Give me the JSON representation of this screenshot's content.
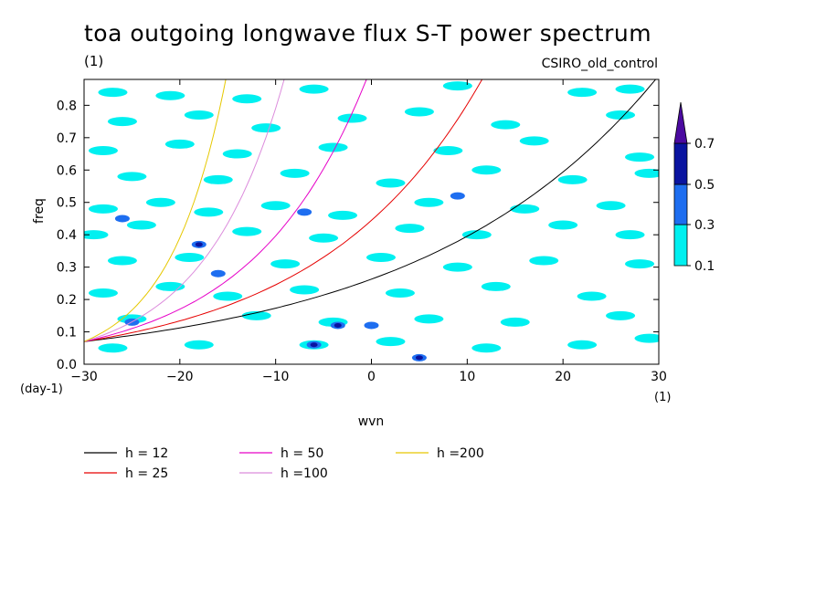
{
  "title": "toa outgoing longwave flux S-T power spectrum",
  "units_label": "(1)",
  "run_label": "CSIRO_old_control",
  "chart_data": {
    "type": "heatmap",
    "title": "toa outgoing longwave flux S-T power spectrum",
    "xlabel": "wvn",
    "ylabel": "freq",
    "x_unit": "(1)",
    "y_unit": "(day-1)",
    "xlim": [
      -30,
      30
    ],
    "ylim": [
      0,
      0.88
    ],
    "x_ticks": [
      -30,
      -20,
      -10,
      0,
      10,
      20,
      30
    ],
    "y_ticks": [
      0.0,
      0.1,
      0.2,
      0.3,
      0.4,
      0.5,
      0.6,
      0.7,
      0.8
    ],
    "colorbar": {
      "levels": [
        0.1,
        0.3,
        0.5,
        0.7
      ],
      "colors": [
        "#00f0f0",
        "#1e6ef0",
        "#0a14a0",
        "#4b0aa0"
      ]
    },
    "series": [
      {
        "name": "h = 12",
        "h": 12,
        "color": "#000000"
      },
      {
        "name": "h = 25",
        "h": 25,
        "color": "#e60000"
      },
      {
        "name": "h = 50",
        "h": 50,
        "color": "#e600c8"
      },
      {
        "name": "h =100",
        "h": 100,
        "color": "#dc8cdc"
      },
      {
        "name": "h =200",
        "h": 200,
        "color": "#e6c800"
      }
    ],
    "blobs": [
      {
        "x": -27,
        "y": 0.84,
        "l": 1
      },
      {
        "x": -21,
        "y": 0.83,
        "l": 1
      },
      {
        "x": -13,
        "y": 0.82,
        "l": 1
      },
      {
        "x": -6,
        "y": 0.85,
        "l": 1
      },
      {
        "x": 9,
        "y": 0.86,
        "l": 1
      },
      {
        "x": 22,
        "y": 0.84,
        "l": 1
      },
      {
        "x": 27,
        "y": 0.85,
        "l": 1
      },
      {
        "x": -26,
        "y": 0.75,
        "l": 1
      },
      {
        "x": -18,
        "y": 0.77,
        "l": 1
      },
      {
        "x": -11,
        "y": 0.73,
        "l": 1
      },
      {
        "x": -2,
        "y": 0.76,
        "l": 1
      },
      {
        "x": 5,
        "y": 0.78,
        "l": 1
      },
      {
        "x": 14,
        "y": 0.74,
        "l": 1
      },
      {
        "x": 26,
        "y": 0.77,
        "l": 1
      },
      {
        "x": -28,
        "y": 0.66,
        "l": 1
      },
      {
        "x": -20,
        "y": 0.68,
        "l": 1
      },
      {
        "x": -14,
        "y": 0.65,
        "l": 1
      },
      {
        "x": -4,
        "y": 0.67,
        "l": 1
      },
      {
        "x": 8,
        "y": 0.66,
        "l": 1
      },
      {
        "x": 17,
        "y": 0.69,
        "l": 1
      },
      {
        "x": 28,
        "y": 0.64,
        "l": 1
      },
      {
        "x": -25,
        "y": 0.58,
        "l": 1
      },
      {
        "x": -16,
        "y": 0.57,
        "l": 1
      },
      {
        "x": -8,
        "y": 0.59,
        "l": 1
      },
      {
        "x": 2,
        "y": 0.56,
        "l": 1
      },
      {
        "x": 12,
        "y": 0.6,
        "l": 1
      },
      {
        "x": 21,
        "y": 0.57,
        "l": 1
      },
      {
        "x": 29,
        "y": 0.59,
        "l": 1
      },
      {
        "x": -28,
        "y": 0.48,
        "l": 1
      },
      {
        "x": -22,
        "y": 0.5,
        "l": 1
      },
      {
        "x": -17,
        "y": 0.47,
        "l": 1
      },
      {
        "x": -10,
        "y": 0.49,
        "l": 1
      },
      {
        "x": -3,
        "y": 0.46,
        "l": 1
      },
      {
        "x": 6,
        "y": 0.5,
        "l": 1
      },
      {
        "x": 16,
        "y": 0.48,
        "l": 1
      },
      {
        "x": 25,
        "y": 0.49,
        "l": 1
      },
      {
        "x": -29,
        "y": 0.4,
        "l": 1
      },
      {
        "x": -24,
        "y": 0.43,
        "l": 1
      },
      {
        "x": -13,
        "y": 0.41,
        "l": 1
      },
      {
        "x": -5,
        "y": 0.39,
        "l": 1
      },
      {
        "x": 4,
        "y": 0.42,
        "l": 1
      },
      {
        "x": 11,
        "y": 0.4,
        "l": 1
      },
      {
        "x": 20,
        "y": 0.43,
        "l": 1
      },
      {
        "x": 27,
        "y": 0.4,
        "l": 1
      },
      {
        "x": -26,
        "y": 0.32,
        "l": 1
      },
      {
        "x": -19,
        "y": 0.33,
        "l": 1
      },
      {
        "x": -9,
        "y": 0.31,
        "l": 1
      },
      {
        "x": 1,
        "y": 0.33,
        "l": 1
      },
      {
        "x": 9,
        "y": 0.3,
        "l": 1
      },
      {
        "x": 18,
        "y": 0.32,
        "l": 1
      },
      {
        "x": 28,
        "y": 0.31,
        "l": 1
      },
      {
        "x": -28,
        "y": 0.22,
        "l": 1
      },
      {
        "x": -21,
        "y": 0.24,
        "l": 1
      },
      {
        "x": -15,
        "y": 0.21,
        "l": 1
      },
      {
        "x": -7,
        "y": 0.23,
        "l": 1
      },
      {
        "x": 3,
        "y": 0.22,
        "l": 1
      },
      {
        "x": 13,
        "y": 0.24,
        "l": 1
      },
      {
        "x": 23,
        "y": 0.21,
        "l": 1
      },
      {
        "x": -25,
        "y": 0.14,
        "l": 1
      },
      {
        "x": -12,
        "y": 0.15,
        "l": 1
      },
      {
        "x": -4,
        "y": 0.13,
        "l": 1
      },
      {
        "x": 6,
        "y": 0.14,
        "l": 1
      },
      {
        "x": 15,
        "y": 0.13,
        "l": 1
      },
      {
        "x": 26,
        "y": 0.15,
        "l": 1
      },
      {
        "x": -27,
        "y": 0.05,
        "l": 1
      },
      {
        "x": -18,
        "y": 0.06,
        "l": 1
      },
      {
        "x": -6,
        "y": 0.06,
        "l": 1
      },
      {
        "x": 2,
        "y": 0.07,
        "l": 1
      },
      {
        "x": 12,
        "y": 0.05,
        "l": 1
      },
      {
        "x": 22,
        "y": 0.06,
        "l": 1
      },
      {
        "x": 29,
        "y": 0.08,
        "l": 1
      },
      {
        "x": -3.5,
        "y": 0.12,
        "l": 2
      },
      {
        "x": -6,
        "y": 0.06,
        "l": 2
      },
      {
        "x": 5,
        "y": 0.02,
        "l": 2
      },
      {
        "x": -18,
        "y": 0.37,
        "l": 2
      },
      {
        "x": -16,
        "y": 0.28,
        "l": 2
      },
      {
        "x": -7,
        "y": 0.47,
        "l": 2
      },
      {
        "x": -26,
        "y": 0.45,
        "l": 2
      },
      {
        "x": -25,
        "y": 0.13,
        "l": 2
      },
      {
        "x": 9,
        "y": 0.52,
        "l": 2
      },
      {
        "x": 0,
        "y": 0.12,
        "l": 2
      },
      {
        "x": -3.5,
        "y": 0.12,
        "l": 3
      },
      {
        "x": 5,
        "y": 0.02,
        "l": 3
      },
      {
        "x": -18,
        "y": 0.37,
        "l": 3
      },
      {
        "x": -6,
        "y": 0.06,
        "l": 3
      }
    ]
  },
  "legend": [
    {
      "label": "h = 12",
      "color": "#000000"
    },
    {
      "label": "h = 25",
      "color": "#e60000"
    },
    {
      "label": "h = 50",
      "color": "#e600c8"
    },
    {
      "label": "h =100",
      "color": "#dc8cdc"
    },
    {
      "label": "h =200",
      "color": "#e6c800"
    }
  ]
}
